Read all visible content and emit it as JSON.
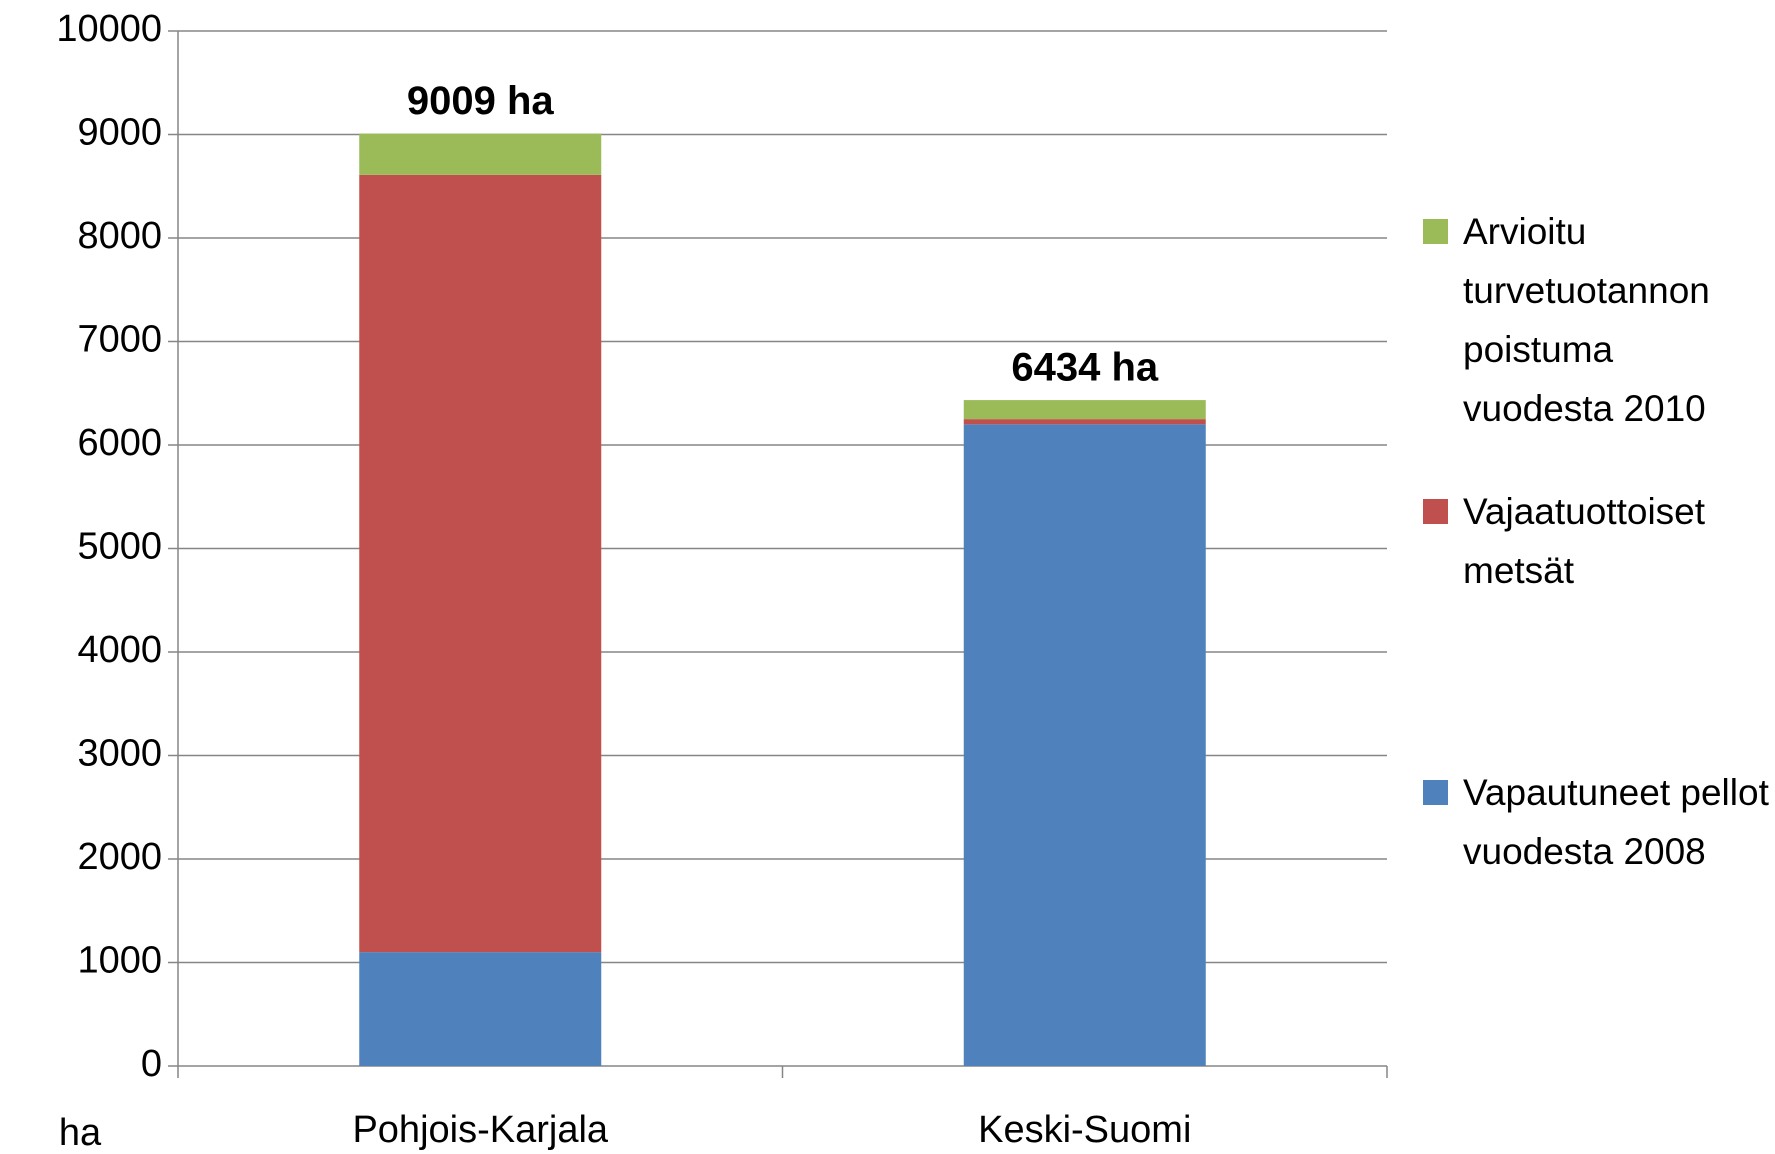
{
  "chart_data": {
    "type": "stacked_bar",
    "categories": [
      "Pohjois-Karjala",
      "Keski-Suomi"
    ],
    "series": [
      {
        "name": "Vapautuneet pellot vuodesta 2008",
        "color": "#4f81bd",
        "values": [
          1100,
          6200
        ]
      },
      {
        "name": "Vajaatuottoiset metsät",
        "color": "#c0504d",
        "values": [
          7510,
          50
        ]
      },
      {
        "name": "Arvioitu turvetuotannon poistuma vuodesta 2010",
        "color": "#9bbb59",
        "values": [
          399,
          184
        ]
      }
    ],
    "totals": {
      "values": [
        9009,
        6434
      ],
      "value_labels": [
        "9009 ha",
        "6434 ha"
      ]
    },
    "y_axis_label": "ha",
    "ylim": [
      0,
      10000
    ],
    "yticks": [
      0,
      1000,
      2000,
      3000,
      4000,
      5000,
      6000,
      7000,
      8000,
      9000,
      10000
    ],
    "grid": true,
    "legend": "right"
  }
}
